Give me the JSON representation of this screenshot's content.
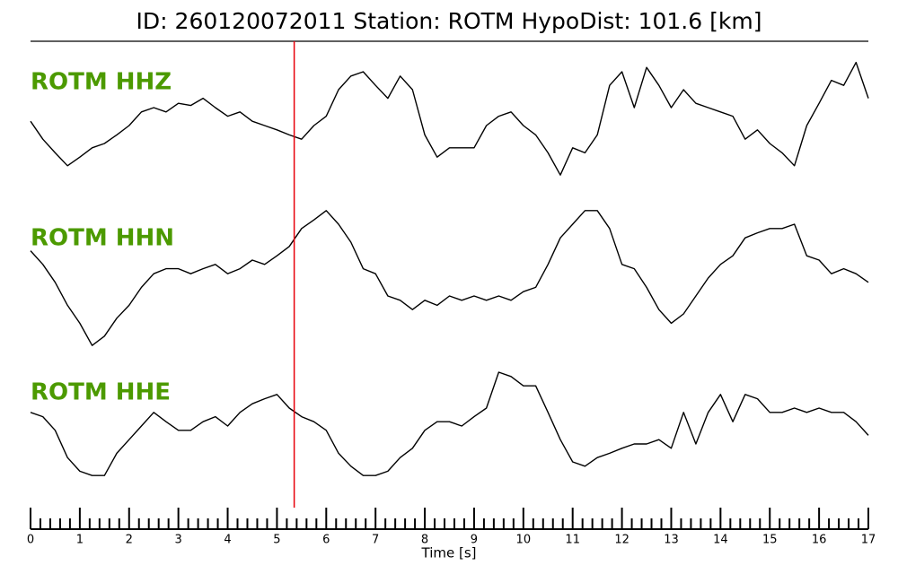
{
  "chart_data": {
    "type": "line",
    "title": "ID: 260120072011   Station: ROTM   HypoDist:   101.6 [km]",
    "xlabel": "Time [s]",
    "xlim": [
      0,
      17
    ],
    "xticks": [
      0,
      1,
      2,
      3,
      4,
      5,
      6,
      7,
      8,
      9,
      10,
      11,
      12,
      13,
      14,
      15,
      16,
      17
    ],
    "xminorticks": [
      0.2,
      0.4,
      0.6,
      0.8,
      1.2,
      1.4,
      1.6,
      1.8,
      2.2,
      2.4,
      2.6,
      2.8,
      3.2,
      3.4,
      3.6,
      3.8,
      4.2,
      4.4,
      4.6,
      4.8,
      5.2,
      5.4,
      5.6,
      5.8,
      6.2,
      6.4,
      6.6,
      6.8,
      7.2,
      7.4,
      7.6,
      7.8,
      8.2,
      8.4,
      8.6,
      8.8,
      9.2,
      9.4,
      9.6,
      9.8,
      10.2,
      10.4,
      10.6,
      10.8,
      11.2,
      11.4,
      11.6,
      11.8,
      12.2,
      12.4,
      12.6,
      12.8,
      13.2,
      13.4,
      13.6,
      13.8,
      14.2,
      14.4,
      14.6,
      14.8,
      15.2,
      15.4,
      15.6,
      15.8,
      16.2,
      16.4,
      16.6,
      16.8
    ],
    "ylim": [
      -1,
      1
    ],
    "pick": {
      "x": 5.35,
      "color": "#e8000b"
    },
    "label_color": "#4c9a00",
    "x": [
      0,
      0.25,
      0.5,
      0.75,
      1,
      1.25,
      1.5,
      1.75,
      2,
      2.25,
      2.5,
      2.75,
      3,
      3.25,
      3.5,
      3.75,
      4,
      4.25,
      4.5,
      4.75,
      5,
      5.25,
      5.5,
      5.75,
      6,
      6.25,
      6.5,
      6.75,
      7,
      7.25,
      7.5,
      7.75,
      8,
      8.25,
      8.5,
      8.75,
      9,
      9.25,
      9.5,
      9.75,
      10,
      10.25,
      10.5,
      10.75,
      11,
      11.25,
      11.5,
      11.75,
      12,
      12.25,
      12.5,
      12.75,
      13,
      13.25,
      13.5,
      13.75,
      14,
      14.25,
      14.5,
      14.75,
      15,
      15.25,
      15.5,
      15.75,
      16,
      16.25,
      16.5,
      16.75,
      17
    ],
    "series": [
      {
        "name": "ROTM HHZ",
        "color": "#000000",
        "values": [
          0.06,
          -0.19,
          -0.38,
          -0.56,
          -0.44,
          -0.31,
          -0.25,
          -0.13,
          0,
          0.19,
          0.25,
          0.19,
          0.31,
          0.28,
          0.38,
          0.25,
          0.13,
          0.19,
          0.06,
          0,
          -0.06,
          -0.13,
          -0.19,
          0,
          0.13,
          0.5,
          0.69,
          0.75,
          0.56,
          0.38,
          0.69,
          0.5,
          -0.13,
          -0.44,
          -0.31,
          -0.31,
          -0.31,
          0,
          0.13,
          0.19,
          0,
          -0.13,
          -0.38,
          -0.69,
          -0.31,
          -0.38,
          -0.13,
          0.56,
          0.75,
          0.25,
          0.81,
          0.56,
          0.25,
          0.5,
          0.31,
          0.25,
          0.19,
          0.13,
          -0.19,
          -0.06,
          -0.25,
          -0.38,
          -0.56,
          0,
          0.31,
          0.63,
          0.56,
          0.88,
          0.38
        ]
      },
      {
        "name": "ROTM HHN",
        "color": "#000000",
        "values": [
          0.38,
          0.19,
          -0.06,
          -0.38,
          -0.63,
          -0.94,
          -0.81,
          -0.56,
          -0.38,
          -0.13,
          0.06,
          0.13,
          0.13,
          0.06,
          0.13,
          0.19,
          0.06,
          0.13,
          0.25,
          0.19,
          0.31,
          0.44,
          0.69,
          0.81,
          0.94,
          0.75,
          0.5,
          0.13,
          0.06,
          -0.25,
          -0.31,
          -0.44,
          -0.31,
          -0.38,
          -0.25,
          -0.31,
          -0.25,
          -0.31,
          -0.25,
          -0.31,
          -0.19,
          -0.13,
          0.19,
          0.56,
          0.75,
          0.94,
          0.94,
          0.69,
          0.19,
          0.13,
          -0.13,
          -0.44,
          -0.63,
          -0.5,
          -0.25,
          0,
          0.19,
          0.31,
          0.56,
          0.63,
          0.69,
          0.69,
          0.75,
          0.31,
          0.25,
          0.06,
          0.13,
          0.06,
          -0.06
        ]
      },
      {
        "name": "ROTM HHE",
        "color": "#000000",
        "values": [
          0.19,
          0.13,
          -0.06,
          -0.44,
          -0.63,
          -0.69,
          -0.69,
          -0.38,
          -0.19,
          0,
          0.19,
          0.06,
          -0.06,
          -0.06,
          0.06,
          0.13,
          0,
          0.19,
          0.31,
          0.38,
          0.44,
          0.25,
          0.13,
          0.06,
          -0.06,
          -0.38,
          -0.56,
          -0.69,
          -0.69,
          -0.63,
          -0.44,
          -0.31,
          -0.06,
          0.06,
          0.06,
          0,
          0.13,
          0.25,
          0.75,
          0.69,
          0.56,
          0.56,
          0.19,
          -0.19,
          -0.5,
          -0.56,
          -0.44,
          -0.38,
          -0.31,
          -0.25,
          -0.25,
          -0.19,
          -0.31,
          0.19,
          -0.25,
          0.19,
          0.44,
          0.06,
          0.44,
          0.38,
          0.19,
          0.19,
          0.25,
          0.19,
          0.25,
          0.19,
          0.19,
          0.06,
          -0.13
        ]
      }
    ]
  }
}
